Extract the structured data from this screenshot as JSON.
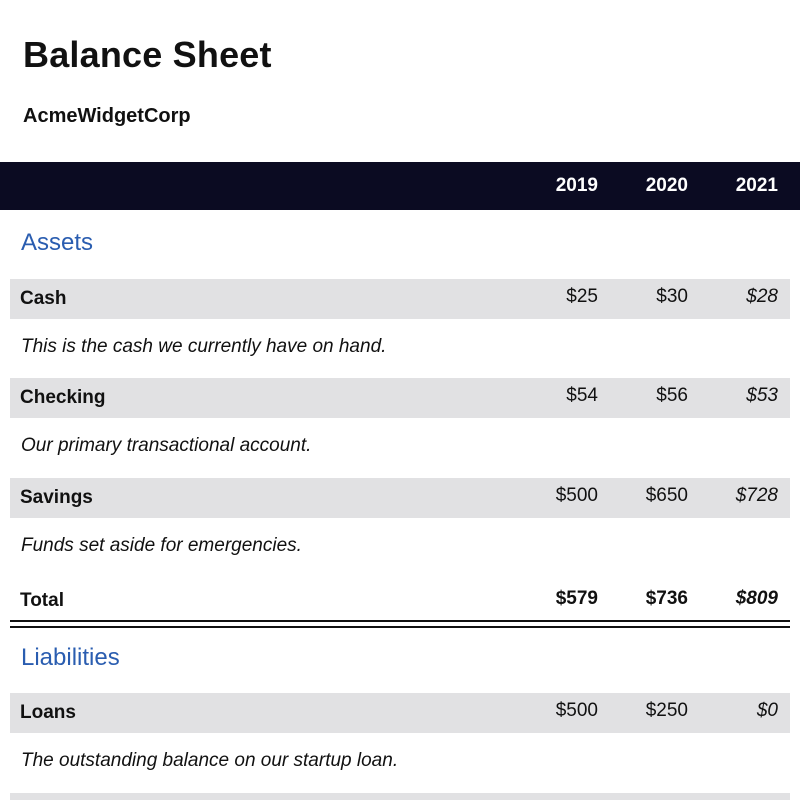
{
  "title": "Balance Sheet",
  "company": "AcmeWidgetCorp",
  "years": [
    "2019",
    "2020",
    "2021"
  ],
  "sections": {
    "assets": {
      "title": "Assets",
      "items": [
        {
          "label": "Cash",
          "values": [
            "$25",
            "$30",
            "$28"
          ],
          "description": "This is the cash we currently have on hand."
        },
        {
          "label": "Checking",
          "values": [
            "$54",
            "$56",
            "$53"
          ],
          "description": "Our primary transactional account."
        },
        {
          "label": "Savings",
          "values": [
            "$500",
            "$650",
            "$728"
          ],
          "description": "Funds set aside for emergencies."
        }
      ],
      "total": {
        "label": "Total",
        "values": [
          "$579",
          "$736",
          "$809"
        ]
      }
    },
    "liabilities": {
      "title": "Liabilities",
      "items": [
        {
          "label": "Loans",
          "values": [
            "$500",
            "$250",
            "$0"
          ],
          "description": "The outstanding balance on our startup loan."
        }
      ]
    }
  },
  "colors": {
    "header_bg": "#0b0b22",
    "section_title": "#2a5db0",
    "row_bg": "#e1e1e3"
  }
}
